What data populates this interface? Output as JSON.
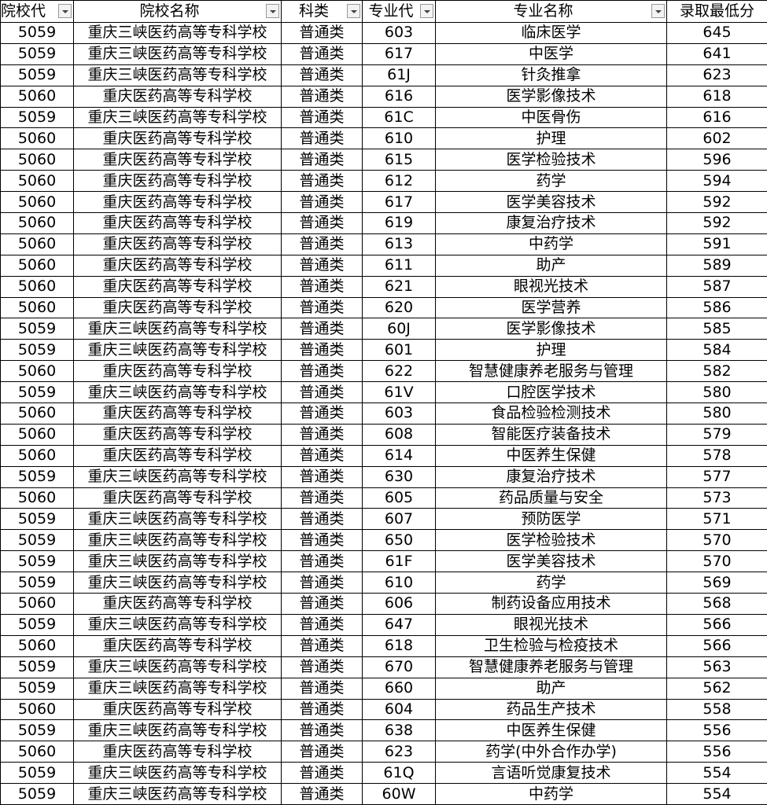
{
  "table": {
    "header": [
      "院校代",
      "院校名称",
      "科类",
      "专业代",
      "专业名称",
      "录取最低分"
    ],
    "rows": [
      [
        "5059",
        "重庆三峡医药高等专科学校",
        "普通类",
        "603",
        "临床医学",
        "645"
      ],
      [
        "5059",
        "重庆三峡医药高等专科学校",
        "普通类",
        "617",
        "中医学",
        "641"
      ],
      [
        "5059",
        "重庆三峡医药高等专科学校",
        "普通类",
        "61J",
        "针灸推拿",
        "623"
      ],
      [
        "5060",
        "重庆医药高等专科学校",
        "普通类",
        "616",
        "医学影像技术",
        "618"
      ],
      [
        "5059",
        "重庆三峡医药高等专科学校",
        "普通类",
        "61C",
        "中医骨伤",
        "616"
      ],
      [
        "5060",
        "重庆医药高等专科学校",
        "普通类",
        "610",
        "护理",
        "602"
      ],
      [
        "5060",
        "重庆医药高等专科学校",
        "普通类",
        "615",
        "医学检验技术",
        "596"
      ],
      [
        "5060",
        "重庆医药高等专科学校",
        "普通类",
        "612",
        "药学",
        "594"
      ],
      [
        "5060",
        "重庆医药高等专科学校",
        "普通类",
        "617",
        "医学美容技术",
        "592"
      ],
      [
        "5060",
        "重庆医药高等专科学校",
        "普通类",
        "619",
        "康复治疗技术",
        "592"
      ],
      [
        "5060",
        "重庆医药高等专科学校",
        "普通类",
        "613",
        "中药学",
        "591"
      ],
      [
        "5060",
        "重庆医药高等专科学校",
        "普通类",
        "611",
        "助产",
        "589"
      ],
      [
        "5060",
        "重庆医药高等专科学校",
        "普通类",
        "621",
        "眼视光技术",
        "587"
      ],
      [
        "5060",
        "重庆医药高等专科学校",
        "普通类",
        "620",
        "医学营养",
        "586"
      ],
      [
        "5059",
        "重庆三峡医药高等专科学校",
        "普通类",
        "60J",
        "医学影像技术",
        "585"
      ],
      [
        "5059",
        "重庆三峡医药高等专科学校",
        "普通类",
        "601",
        "护理",
        "584"
      ],
      [
        "5060",
        "重庆医药高等专科学校",
        "普通类",
        "622",
        "智慧健康养老服务与管理",
        "582"
      ],
      [
        "5059",
        "重庆三峡医药高等专科学校",
        "普通类",
        "61V",
        "口腔医学技术",
        "580"
      ],
      [
        "5060",
        "重庆医药高等专科学校",
        "普通类",
        "603",
        "食品检验检测技术",
        "580"
      ],
      [
        "5060",
        "重庆医药高等专科学校",
        "普通类",
        "608",
        "智能医疗装备技术",
        "579"
      ],
      [
        "5060",
        "重庆医药高等专科学校",
        "普通类",
        "614",
        "中医养生保健",
        "578"
      ],
      [
        "5059",
        "重庆三峡医药高等专科学校",
        "普通类",
        "630",
        "康复治疗技术",
        "577"
      ],
      [
        "5060",
        "重庆医药高等专科学校",
        "普通类",
        "605",
        "药品质量与安全",
        "573"
      ],
      [
        "5059",
        "重庆三峡医药高等专科学校",
        "普通类",
        "607",
        "预防医学",
        "571"
      ],
      [
        "5059",
        "重庆三峡医药高等专科学校",
        "普通类",
        "650",
        "医学检验技术",
        "570"
      ],
      [
        "5059",
        "重庆三峡医药高等专科学校",
        "普通类",
        "61F",
        "医学美容技术",
        "570"
      ],
      [
        "5059",
        "重庆三峡医药高等专科学校",
        "普通类",
        "610",
        "药学",
        "569"
      ],
      [
        "5060",
        "重庆医药高等专科学校",
        "普通类",
        "606",
        "制药设备应用技术",
        "568"
      ],
      [
        "5059",
        "重庆三峡医药高等专科学校",
        "普通类",
        "647",
        "眼视光技术",
        "566"
      ],
      [
        "5060",
        "重庆医药高等专科学校",
        "普通类",
        "618",
        "卫生检验与检疫技术",
        "566"
      ],
      [
        "5059",
        "重庆三峡医药高等专科学校",
        "普通类",
        "670",
        "智慧健康养老服务与管理",
        "563"
      ],
      [
        "5059",
        "重庆三峡医药高等专科学校",
        "普通类",
        "660",
        "助产",
        "562"
      ],
      [
        "5060",
        "重庆医药高等专科学校",
        "普通类",
        "604",
        "药品生产技术",
        "558"
      ],
      [
        "5059",
        "重庆三峡医药高等专科学校",
        "普通类",
        "638",
        "中医养生保健",
        "556"
      ],
      [
        "5060",
        "重庆医药高等专科学校",
        "普通类",
        "623",
        "药学(中外合作办学)",
        "556"
      ],
      [
        "5059",
        "重庆三峡医药高等专科学校",
        "普通类",
        "61Q",
        "言语听觉康复技术",
        "554"
      ],
      [
        "5059",
        "重庆三峡医药高等专科学校",
        "普通类",
        "60W",
        "中药学",
        "554"
      ]
    ]
  }
}
